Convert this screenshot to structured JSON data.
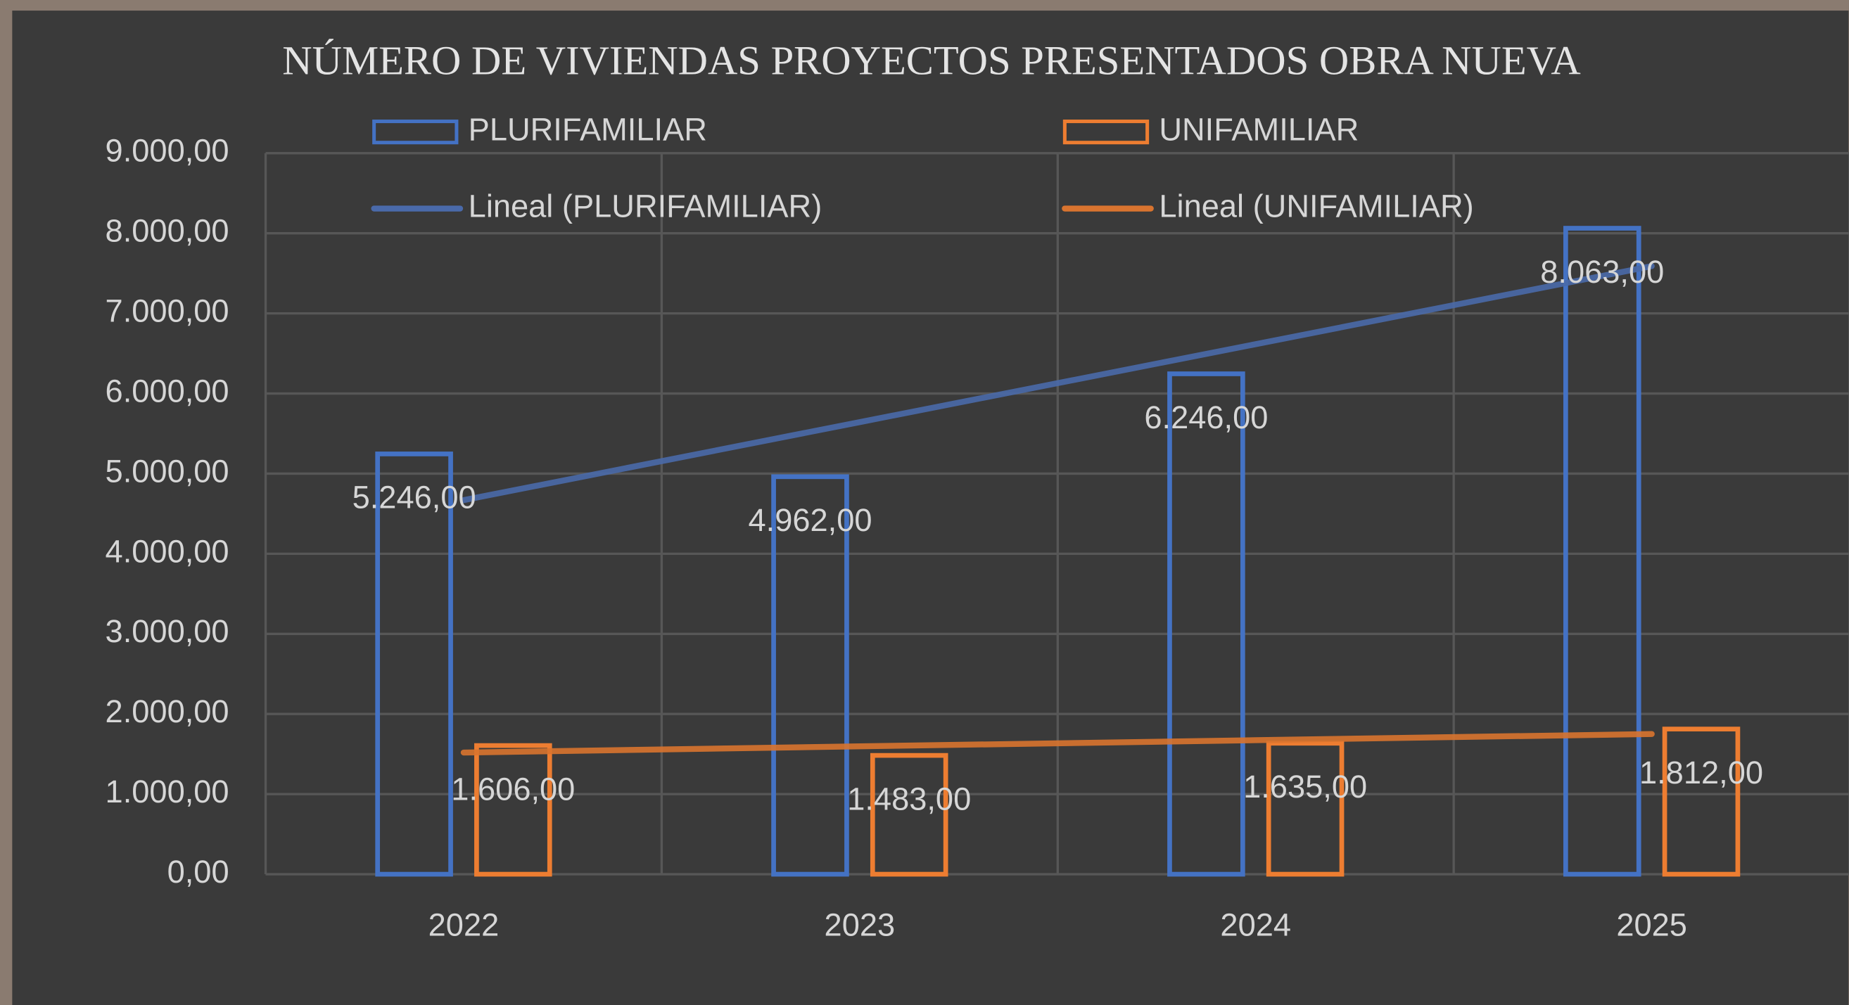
{
  "chart_data": {
    "type": "bar",
    "title": "NÚMERO DE VIVIENDAS PROYECTOS PRESENTADOS OBRA NUEVA",
    "categories": [
      "2022",
      "2023",
      "2024",
      "2025"
    ],
    "series": [
      {
        "name": "PLURIFAMILIAR",
        "color": "#4472c4",
        "values": [
          5246,
          4962,
          6246,
          8063
        ],
        "value_labels": [
          "5.246,00",
          "4.962,00",
          "6.246,00",
          "8.063,00"
        ]
      },
      {
        "name": "UNIFAMILIAR",
        "color": "#ed7d31",
        "values": [
          1606,
          1483,
          1635,
          1812
        ],
        "value_labels": [
          "1.606,00",
          "1.483,00",
          "1.635,00",
          "1.812,00"
        ]
      }
    ],
    "trendlines": [
      {
        "name": "Lineal (PLURIFAMILIAR)",
        "color": "#4a6aaa",
        "values": [
          4669,
          5643,
          6616,
          7590
        ]
      },
      {
        "name": "Lineal (UNIFAMILIAR)",
        "color": "#d9742f",
        "values": [
          1519,
          1596,
          1673,
          1750
        ]
      }
    ],
    "ylim": [
      0,
      9000
    ],
    "yticks": [
      {
        "value": 0,
        "label": "0,00"
      },
      {
        "value": 1000,
        "label": "1.000,00"
      },
      {
        "value": 2000,
        "label": "2.000,00"
      },
      {
        "value": 3000,
        "label": "3.000,00"
      },
      {
        "value": 4000,
        "label": "4.000,00"
      },
      {
        "value": 5000,
        "label": "5.000,00"
      },
      {
        "value": 6000,
        "label": "6.000,00"
      },
      {
        "value": 7000,
        "label": "7.000,00"
      },
      {
        "value": 8000,
        "label": "8.000,00"
      },
      {
        "value": 9000,
        "label": "9.000,00"
      }
    ],
    "grid": true,
    "legend": "top"
  }
}
